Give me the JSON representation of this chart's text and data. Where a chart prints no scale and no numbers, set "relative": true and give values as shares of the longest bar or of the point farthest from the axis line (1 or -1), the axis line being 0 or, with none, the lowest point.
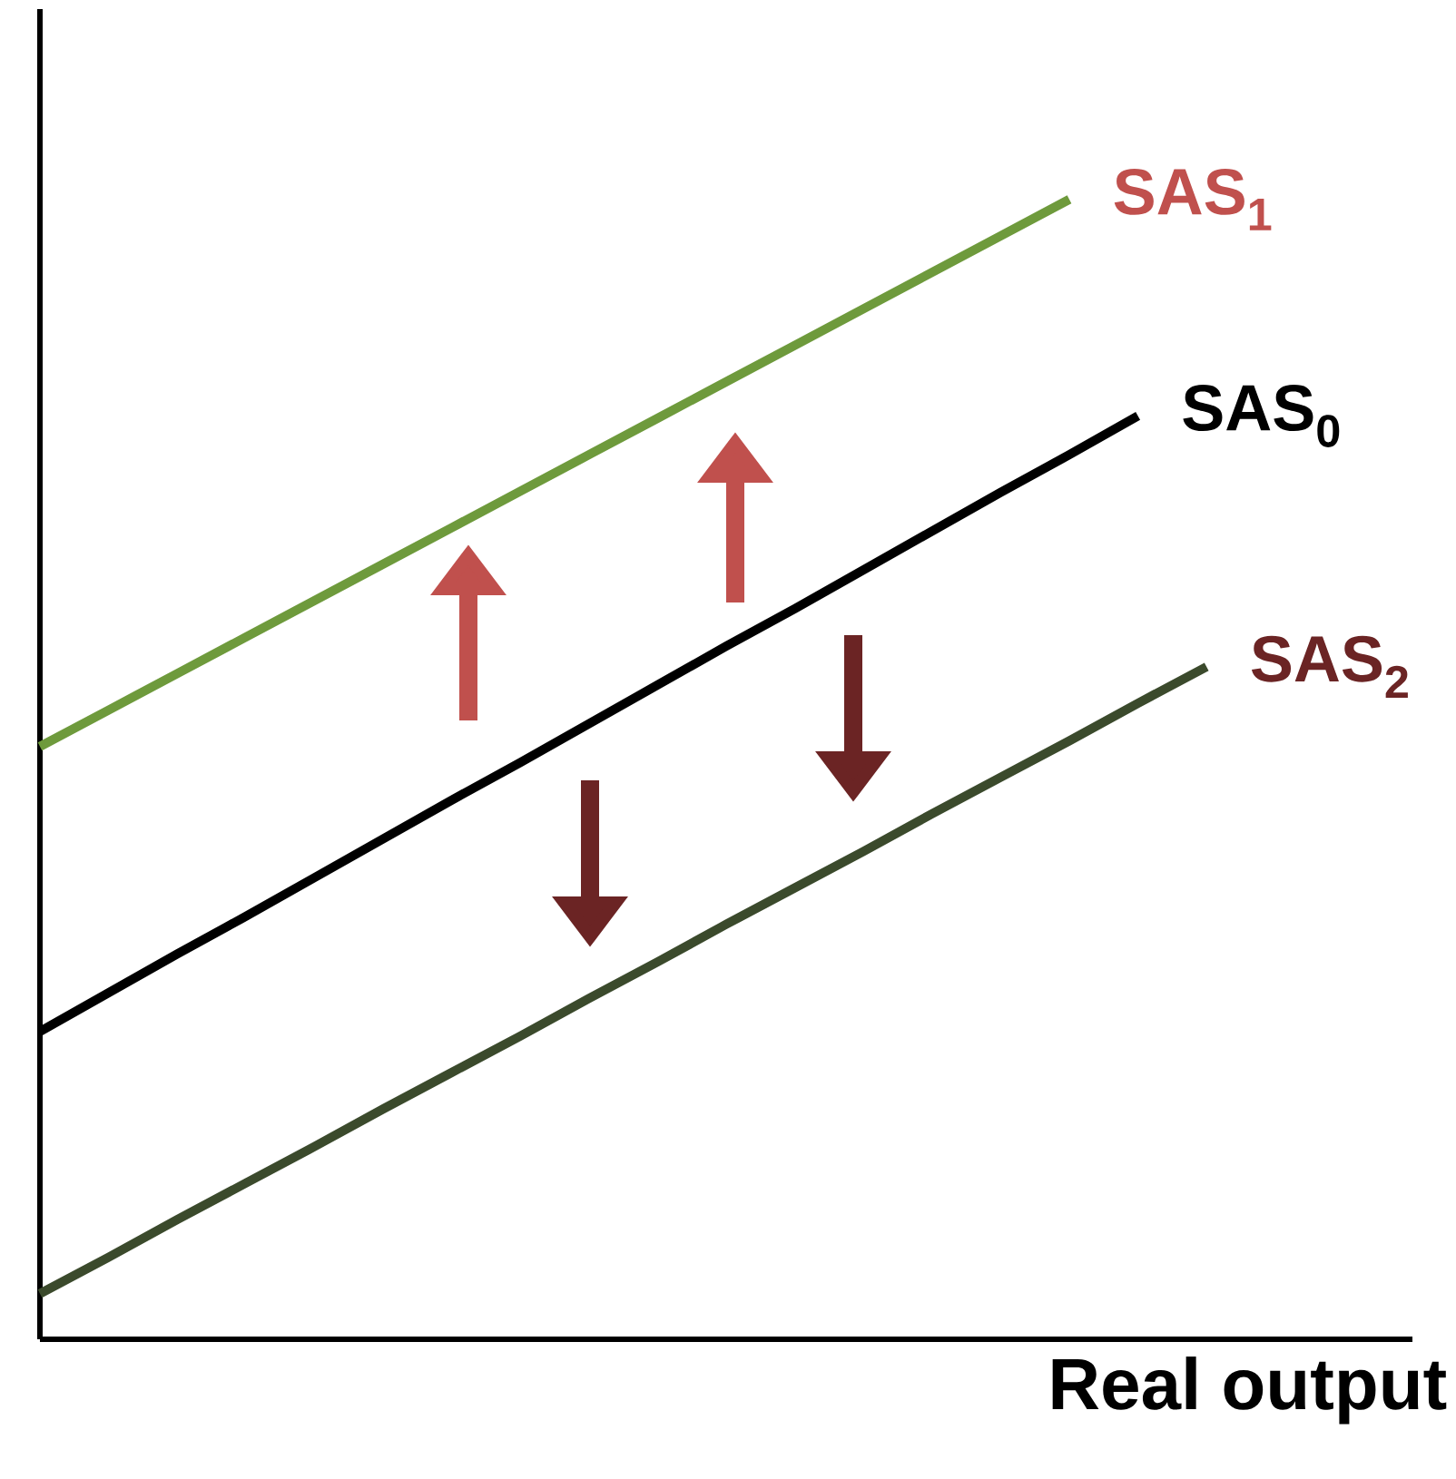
{
  "chart_data": {
    "type": "line",
    "xlabel": "Real output",
    "relative": true,
    "marker": "none",
    "line_style": "solid",
    "categories": [
      null,
      null,
      null,
      null,
      null,
      null,
      null,
      null,
      null,
      null,
      null,
      null,
      null,
      null,
      null,
      null,
      null,
      null,
      null,
      null,
      null
    ],
    "series": [
      {
        "name": "SAS$_{1}$",
        "color": "#6e9a3c",
        "values": [
          0.52,
          0.552,
          0.584,
          0.616,
          0.648,
          0.68,
          0.712,
          0.744,
          0.776,
          0.808,
          0.84,
          0.872,
          0.904,
          0.936,
          0.968,
          1.0,
          null,
          null,
          null,
          null,
          null
        ]
      },
      {
        "name": "SAS$_{0}$",
        "color": "#000000",
        "values": [
          0.27,
          0.304,
          0.338,
          0.371,
          0.405,
          0.439,
          0.473,
          0.506,
          0.54,
          0.574,
          0.608,
          0.641,
          0.675,
          0.709,
          0.743,
          0.776,
          0.81,
          null,
          null,
          null,
          null
        ]
      },
      {
        "name": "SAS$_{2}$",
        "color": "#3b4a2c",
        "values": [
          0.04,
          0.072,
          0.105,
          0.137,
          0.169,
          0.202,
          0.234,
          0.266,
          0.299,
          0.331,
          0.364,
          0.396,
          0.428,
          0.461,
          0.493,
          0.525,
          0.558,
          0.59,
          null,
          null,
          null
        ]
      }
    ]
  }
}
